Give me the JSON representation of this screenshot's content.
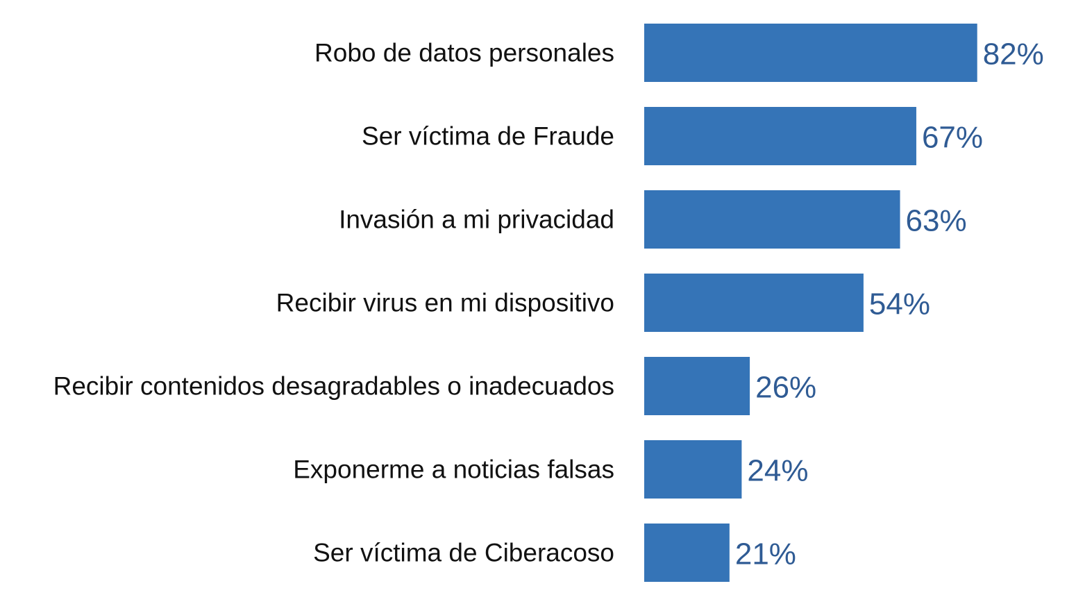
{
  "chart_data": {
    "type": "bar",
    "orientation": "horizontal",
    "categories": [
      "Robo de datos personales",
      "Ser víctima de Fraude",
      "Invasión a mi privacidad",
      "Recibir virus en mi dispositivo",
      "Recibir contenidos desagradables o inadecuados",
      "Exponerme a noticias falsas",
      "Ser víctima de Ciberacoso"
    ],
    "values": [
      82,
      67,
      63,
      54,
      26,
      24,
      21
    ],
    "value_labels": [
      "82%",
      "67%",
      "63%",
      "54%",
      "26%",
      "24%",
      "21%"
    ],
    "unit": "%",
    "title": "",
    "xlabel": "",
    "ylabel": "",
    "xlim": [
      0,
      100
    ],
    "grid": false,
    "legend": "none",
    "colors": {
      "bar": "#3574b7",
      "value_label": "#2f5b94",
      "category_label": "#111111"
    }
  }
}
